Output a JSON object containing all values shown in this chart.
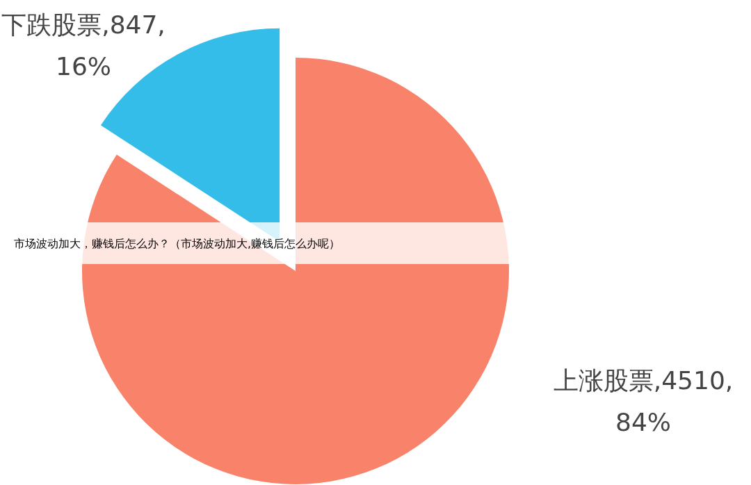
{
  "chart_data": {
    "type": "pie",
    "categories": [
      "上涨股票",
      "下跌股票"
    ],
    "values": [
      4510,
      847
    ],
    "colors": [
      "#f8836a",
      "#33bde8"
    ],
    "value_labels": [
      "4510, 84%",
      "847, 16%"
    ],
    "annotations": [
      "市场波动加大，赚钱后怎么办？（市场波动加大,赚钱后怎么办呢）"
    ]
  }
}
